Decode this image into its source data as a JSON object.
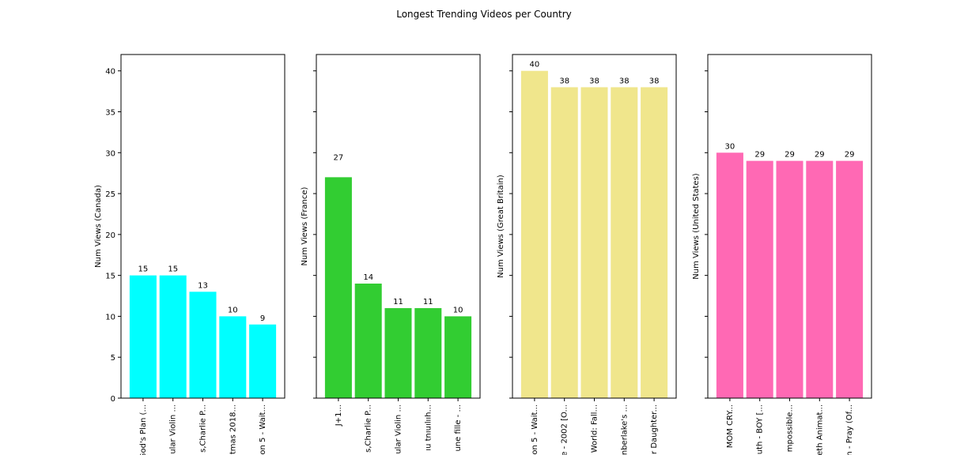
{
  "title": "Longest Trending Videos per Country",
  "chart_data": [
    {
      "type": "bar",
      "ylabel": "Num Views (Canada)",
      "ylim": [
        0,
        42
      ],
      "yticks": [
        0,
        5,
        10,
        15,
        20,
        25,
        30,
        35,
        40
      ],
      "show_ytick_labels": true,
      "color": "#00ffff",
      "categories": [
        "God's Plan (...",
        "ular Violin ...",
        "s,Charlie P...",
        "tmas 2018...",
        "on 5 - Wait..."
      ],
      "values": [
        15,
        15,
        13,
        10,
        9
      ]
    },
    {
      "type": "bar",
      "ylabel": "Num Views (France)",
      "ylim": [
        0,
        42
      ],
      "yticks": [
        0,
        5,
        10,
        15,
        20,
        25,
        30,
        35,
        40
      ],
      "show_ytick_labels": false,
      "color": "#32cd32",
      "categories": [
        "J+1...",
        "s,Charlie P...",
        "ular Violin ...",
        "ıu tnıuılııh...",
        "une fille - ..."
      ],
      "values": [
        27,
        14,
        11,
        11,
        10
      ]
    },
    {
      "type": "bar",
      "ylabel": "Num Views (Great Britain)",
      "ylim": [
        0,
        42
      ],
      "yticks": [
        0,
        5,
        10,
        15,
        20,
        25,
        30,
        35,
        40
      ],
      "show_ytick_labels": false,
      "color": "#f0e68c",
      "categories": [
        "on 5 - Wait...",
        "e - 2002 [O...",
        "World: Fall...",
        "nberlake's ...",
        "r Daughter..."
      ],
      "values": [
        40,
        38,
        38,
        38,
        38
      ]
    },
    {
      "type": "bar",
      "ylabel": "Num Views (United States)",
      "ylim": [
        0,
        42
      ],
      "yticks": [
        0,
        5,
        10,
        15,
        20,
        25,
        30,
        35,
        40
      ],
      "show_ytick_labels": false,
      "color": "#ff69b4",
      "categories": [
        "MOM CRY...",
        "uth - BOY [...",
        "mpossible...",
        "eth Animat...",
        "n - Pray (Of..."
      ],
      "values": [
        30,
        29,
        29,
        29,
        29
      ]
    }
  ]
}
